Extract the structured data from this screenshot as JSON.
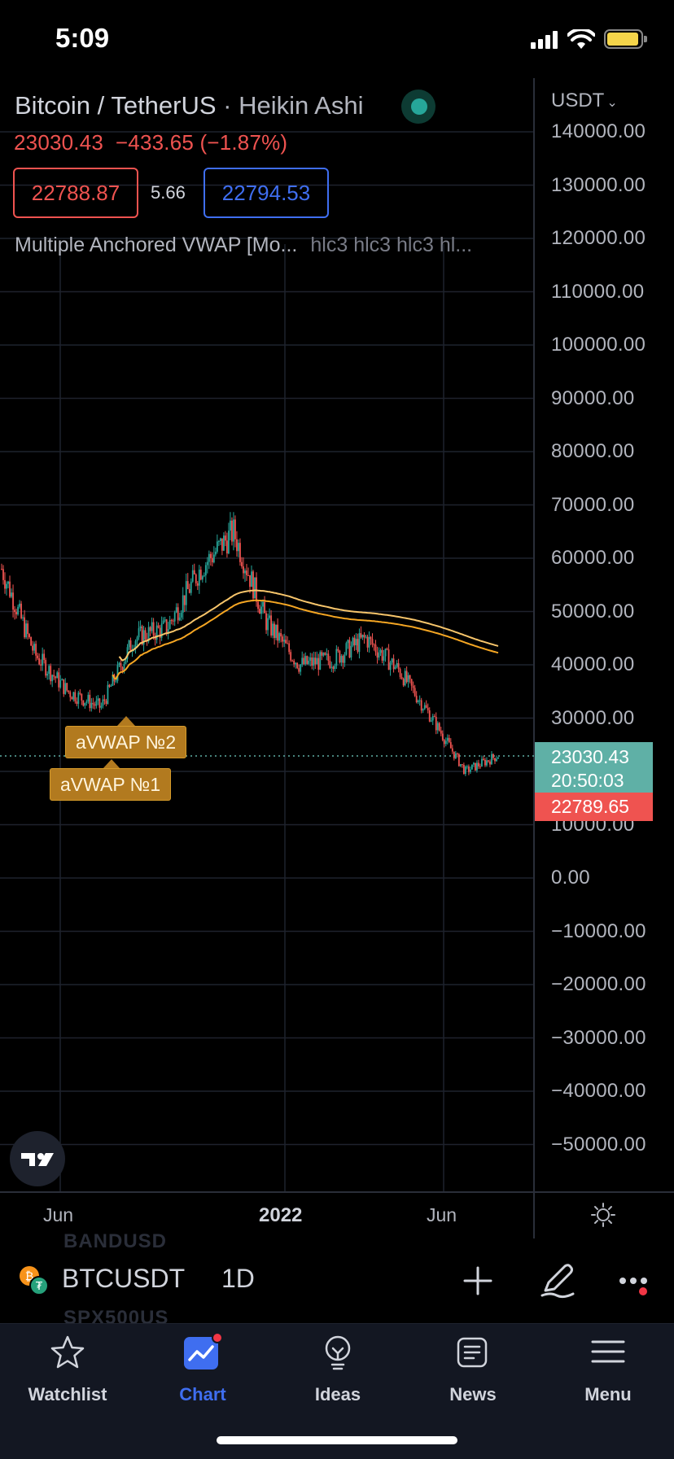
{
  "status_bar": {
    "time": "5:09"
  },
  "chart": {
    "symbol_full": "Bitcoin / TetherUS",
    "chart_style": "Heikin Ashi",
    "last_price": "23030.43",
    "change": "−433.65",
    "change_pct": "(−1.87%)",
    "bid": "22788.87",
    "spread": "5.66",
    "ask": "22794.53",
    "indicator_name": "Multiple Anchored VWAP [Mo...",
    "indicator_args": "hlc3 hlc3 hlc3 hl...",
    "currency": "USDT",
    "price_tag_last": "23030.43",
    "price_tag_countdown": "20:50:03",
    "price_tag_hl": "22789.65",
    "avwap_labels": [
      "aVWAP №2",
      "aVWAP №1"
    ],
    "x_labels": [
      "Jun",
      "2022",
      "Jun"
    ],
    "y_labels": [
      "140000.00",
      "130000.00",
      "120000.00",
      "110000.00",
      "100000.00",
      "90000.00",
      "80000.00",
      "70000.00",
      "60000.00",
      "50000.00",
      "40000.00",
      "30000.00",
      "10000.00",
      "0.00",
      "−10000.00",
      "−20000.00",
      "−30000.00",
      "−40000.00",
      "−50000.00"
    ],
    "colors": {
      "up": "#26a69a",
      "down": "#ef5350",
      "vwap1": "#f5a623",
      "vwap2": "#f7c56b",
      "grid": "#1e222d"
    }
  },
  "chart_data": {
    "type": "line",
    "title": "Bitcoin / TetherUS · Heikin Ashi",
    "x": [
      "2021-04",
      "2021-05",
      "2021-06",
      "2021-07",
      "2021-08",
      "2021-09",
      "2021-10",
      "2021-11",
      "2021-12",
      "2022-01",
      "2022-02",
      "2022-03",
      "2022-04",
      "2022-05",
      "2022-06",
      "2022-07"
    ],
    "series": [
      {
        "name": "BTCUSDT",
        "values": [
          58000,
          42000,
          35000,
          32000,
          45000,
          47000,
          58000,
          65000,
          48000,
          40000,
          41000,
          45000,
          39000,
          30000,
          20000,
          23030
        ]
      }
    ],
    "ylim": [
      -55000,
      145000
    ],
    "grid": true
  },
  "symbol_bar": {
    "ghost_top": "BANDUSD",
    "ghost_bottom": "SPX500US",
    "symbol": "BTCUSDT",
    "interval": "1D"
  },
  "tabs": [
    {
      "label": "Watchlist",
      "icon": "star-icon"
    },
    {
      "label": "Chart",
      "icon": "chart-icon"
    },
    {
      "label": "Ideas",
      "icon": "lightbulb-icon"
    },
    {
      "label": "News",
      "icon": "news-icon"
    },
    {
      "label": "Menu",
      "icon": "hamburger-icon"
    }
  ]
}
